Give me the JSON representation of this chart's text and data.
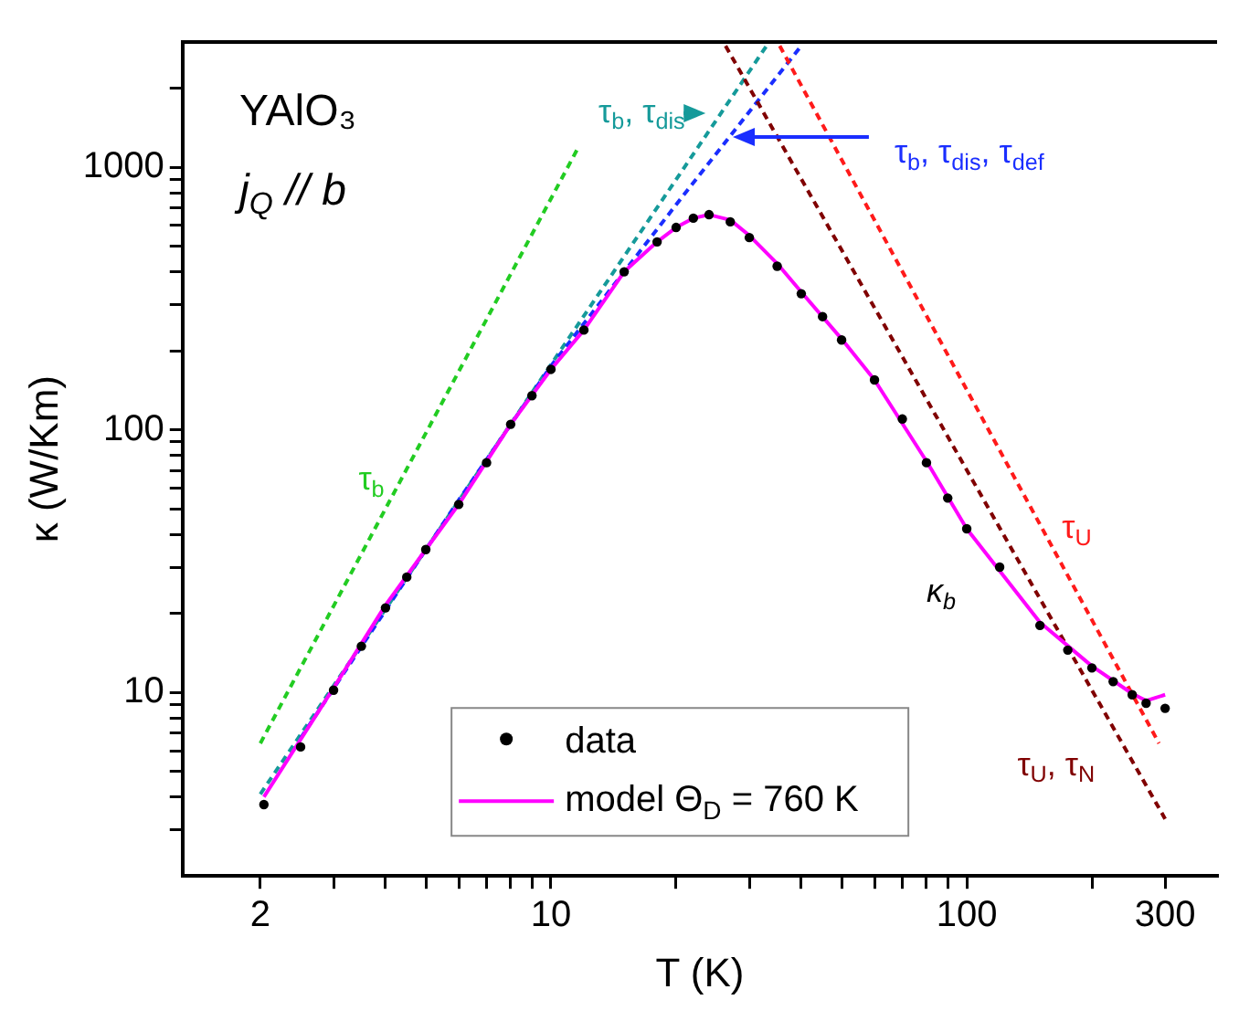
{
  "chart_data": {
    "type": "scatter",
    "xlabel": "T (K)",
    "ylabel": "κ (W/Km)",
    "log": "xy",
    "grid": false,
    "legend": "bottom",
    "xlim": [
      1.3,
      400
    ],
    "ylim": [
      2,
      3000
    ],
    "xticks": [
      2,
      {
        "value": 3,
        "label": null
      },
      {
        "value": 4,
        "label": null
      },
      {
        "value": 5,
        "label": null
      },
      {
        "value": 6,
        "label": null
      },
      {
        "value": 7,
        "label": null
      },
      {
        "value": 8,
        "label": null
      },
      {
        "value": 9,
        "label": null
      },
      10,
      {
        "value": 20,
        "label": null
      },
      {
        "value": 30,
        "label": null
      },
      {
        "value": 40,
        "label": null
      },
      {
        "value": 50,
        "label": null
      },
      {
        "value": 60,
        "label": null
      },
      {
        "value": 70,
        "label": null
      },
      {
        "value": 80,
        "label": null
      },
      {
        "value": 90,
        "label": null
      },
      100,
      {
        "value": 200,
        "label": null
      },
      300
    ],
    "yticks": [
      {
        "value": 3,
        "label": null
      },
      {
        "value": 4,
        "label": null
      },
      {
        "value": 5,
        "label": null
      },
      {
        "value": 6,
        "label": null
      },
      {
        "value": 7,
        "label": null
      },
      {
        "value": 8,
        "label": null
      },
      {
        "value": 9,
        "label": null
      },
      10,
      {
        "value": 20,
        "label": null
      },
      {
        "value": 30,
        "label": null
      },
      {
        "value": 40,
        "label": null
      },
      {
        "value": 50,
        "label": null
      },
      {
        "value": 60,
        "label": null
      },
      {
        "value": 70,
        "label": null
      },
      {
        "value": 80,
        "label": null
      },
      {
        "value": 90,
        "label": null
      },
      100,
      {
        "value": 200,
        "label": null
      },
      {
        "value": 300,
        "label": null
      },
      {
        "value": 400,
        "label": null
      },
      {
        "value": 500,
        "label": null
      },
      {
        "value": 600,
        "label": null
      },
      {
        "value": 700,
        "label": null
      },
      {
        "value": 800,
        "label": null
      },
      {
        "value": 900,
        "label": null
      },
      1000,
      {
        "value": 2000,
        "label": null
      }
    ],
    "annotations": [
      "YAlO₃",
      "j$_{Q}$ // b",
      "κ$_{b}$"
    ],
    "series": [
      {
        "name": "data",
        "marker": "circle",
        "color": "#000000",
        "x": [
          2.04,
          2.5,
          3,
          3.5,
          4,
          4.5,
          5,
          6,
          7,
          8,
          9,
          10,
          12,
          15,
          18,
          20,
          22,
          24,
          27,
          30,
          35,
          40,
          45,
          50,
          60,
          70,
          80,
          90,
          100,
          120,
          150,
          175,
          200,
          225,
          250,
          270,
          300
        ],
        "values": [
          3.74,
          6.2,
          10.2,
          15,
          21,
          27.5,
          35,
          52,
          75,
          105,
          135,
          170,
          240,
          400,
          520,
          590,
          640,
          660,
          620,
          540,
          420,
          330,
          270,
          220,
          155,
          110,
          75,
          55,
          42,
          30,
          18,
          14.5,
          12.4,
          11,
          9.8,
          9.1,
          8.7
        ]
      },
      {
        "name": "model Θ$_{D}$ = 760 K",
        "type": "line",
        "marker": "none",
        "line_style": "solid",
        "color": "#ff00ff",
        "x": [
          2.04,
          3,
          4,
          5,
          6,
          8,
          10,
          12,
          15,
          18,
          20,
          22,
          24,
          27,
          30,
          35,
          40,
          50,
          60,
          80,
          100,
          150,
          200,
          250,
          270,
          300
        ],
        "values": [
          4.0,
          10.4,
          21.5,
          35,
          52,
          105,
          170,
          240,
          400,
          520,
          590,
          640,
          660,
          630,
          550,
          430,
          335,
          222,
          155,
          76,
          42,
          18.5,
          12.6,
          9.9,
          9.3,
          9.8
        ]
      },
      {
        "name": "τ$_{b}$",
        "type": "line",
        "marker": "none",
        "line_style": "dashed",
        "color": "#22cc22",
        "x": [
          2,
          11.6
        ],
        "values": [
          6.4,
          1180
        ]
      },
      {
        "name": "τ$_{b}$, τ$_{dis}$",
        "type": "line",
        "marker": "none",
        "line_style": "dashed",
        "color": "#159a9a",
        "x": [
          2,
          33
        ],
        "values": [
          4.1,
          2900
        ]
      },
      {
        "name": "τ$_{b}$, τ$_{dis}$, τ$_{def}$",
        "type": "line",
        "marker": "none",
        "line_style": "dashed",
        "color": "#1a2eff",
        "x": [
          2.5,
          6,
          10,
          20.8,
          40
        ],
        "values": [
          6.7,
          54,
          175,
          780,
          2900
        ]
      },
      {
        "name": "τ$_{U}$",
        "type": "line",
        "marker": "none",
        "line_style": "dashed",
        "color": "#ff1a1a",
        "x": [
          35.5,
          290
        ],
        "values": [
          2900,
          6.4
        ]
      },
      {
        "name": "τ$_{U}$, τ$_{N}$",
        "type": "line",
        "marker": "none",
        "line_style": "dashed",
        "color": "#800000",
        "x": [
          26.3,
          300
        ],
        "values": [
          2900,
          3.3
        ]
      }
    ]
  }
}
